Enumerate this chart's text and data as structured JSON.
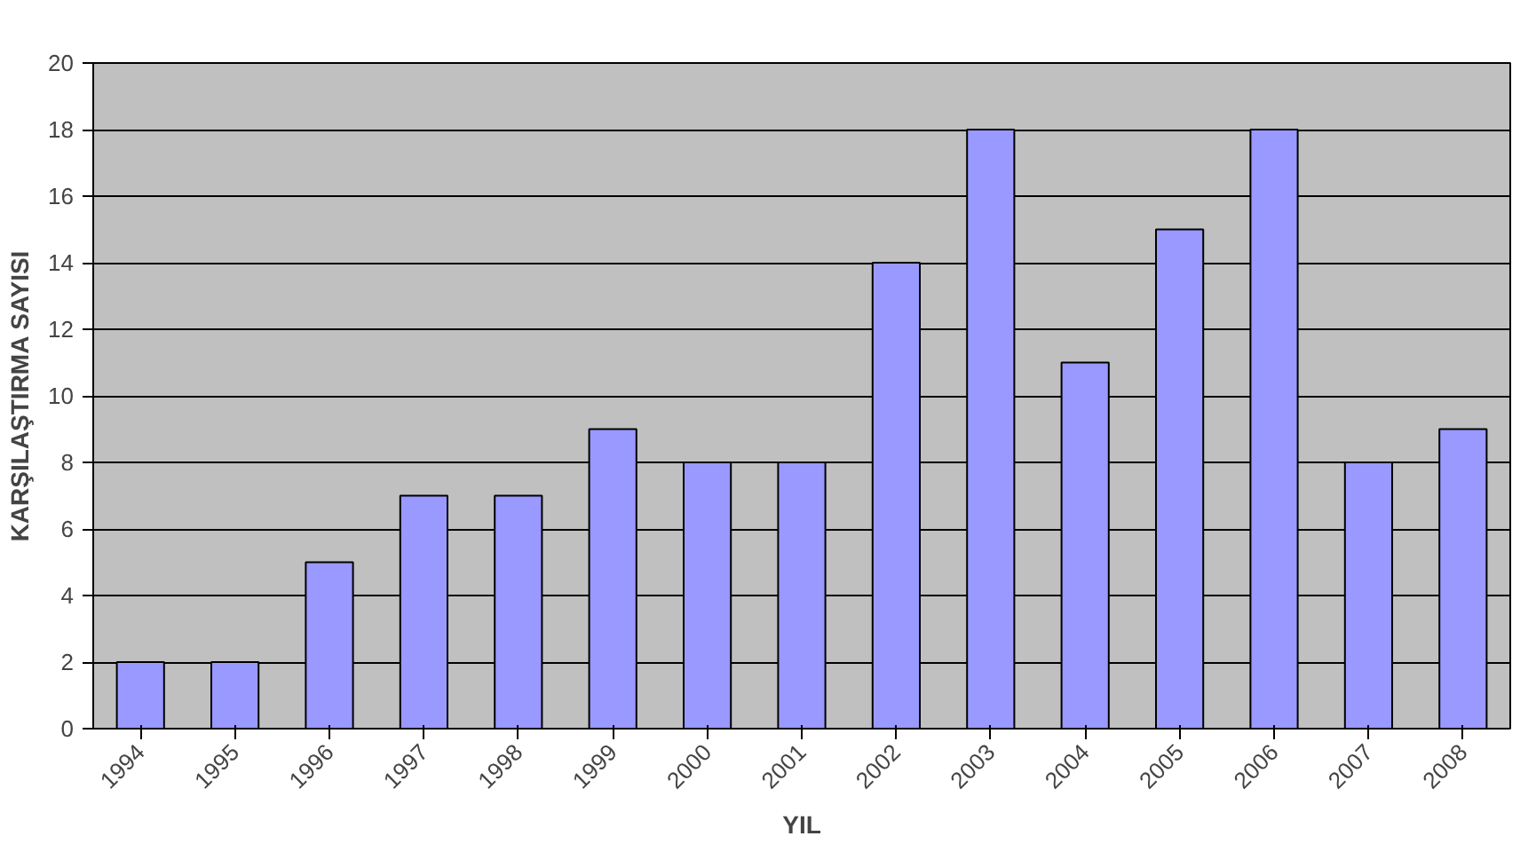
{
  "chart_data": {
    "type": "bar",
    "xlabel": "YIL",
    "ylabel": "KARŞILAŞTIRMA SAYISI",
    "categories": [
      "1994",
      "1995",
      "1996",
      "1997",
      "1998",
      "1999",
      "2000",
      "2001",
      "2002",
      "2003",
      "2004",
      "2005",
      "2006",
      "2007",
      "2008"
    ],
    "values": [
      2,
      2,
      5,
      7,
      7,
      9,
      8,
      8,
      14,
      18,
      11,
      15,
      18,
      8,
      9
    ],
    "color": "#9999ff",
    "ylim": [
      0,
      20
    ],
    "yticks": [
      0,
      2,
      4,
      6,
      8,
      10,
      12,
      14,
      16,
      18,
      20
    ],
    "grid": "y"
  }
}
